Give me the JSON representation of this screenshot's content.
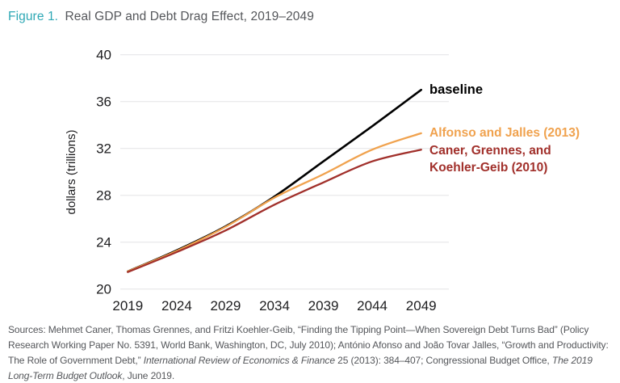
{
  "palette": {
    "teal": "#2ea8b5",
    "title_gray": "#54565a",
    "axis_text": "#1d1d1f",
    "gridline": "#e4e4e5",
    "source_gray": "#54565a",
    "baseline_black": "#000000",
    "alfonso_orange": "#f0a24e",
    "caner_red": "#a1302b"
  },
  "title": {
    "figure_label": "Figure 1.",
    "text": "Real GDP and Debt Drag Effect, 2019–2049"
  },
  "chart_data": {
    "type": "line",
    "title": "Real GDP and Debt Drag Effect, 2019–2049",
    "xlabel": "",
    "ylabel": "dollars (trillions)",
    "ylim": [
      20,
      40
    ],
    "yticks": [
      40,
      36,
      32,
      28,
      24,
      20
    ],
    "xticks": [
      2019,
      2024,
      2029,
      2034,
      2039,
      2044,
      2049
    ],
    "grid": "horizontal",
    "legend_position": "right-of-line-ends",
    "x": [
      2019,
      2024,
      2029,
      2034,
      2039,
      2044,
      2049
    ],
    "series": [
      {
        "name": "baseline",
        "label_lines": [
          "baseline"
        ],
        "color": "#000000",
        "values": [
          21.5,
          23.3,
          25.35,
          27.9,
          30.9,
          33.9,
          37.0
        ]
      },
      {
        "name": "alfonso-and-jalles-2013",
        "label_lines": [
          "Alfonso and Jalles (2013)"
        ],
        "color": "#f0a24e",
        "values": [
          21.5,
          23.25,
          25.3,
          27.8,
          29.8,
          31.9,
          33.3
        ]
      },
      {
        "name": "caner-grennes-koehler-geib-2010",
        "label_lines": [
          "Caner, Grennes, and",
          "Koehler-Geib (2010)"
        ],
        "color": "#a1302b",
        "values": [
          21.45,
          23.15,
          25.0,
          27.2,
          29.1,
          30.9,
          31.9
        ]
      }
    ]
  },
  "sources": {
    "segments": [
      {
        "text": "Sources: Mehmet Caner, Thomas Grennes, and Fritzi Koehler-Geib, “Finding the Tipping Point—When Sovereign Debt Turns Bad” (Policy Research Working Paper No. 5391, World Bank, Washington, DC, July 2010); António Afonso and João Tovar Jalles, “Growth and Productivity: The Role of Government Debt,” ",
        "italic": false
      },
      {
        "text": "International Review of Economics & Finance",
        "italic": true
      },
      {
        "text": " 25 (2013): 384–407; Congressional Budget Office, ",
        "italic": false
      },
      {
        "text": "The 2019 Long-Term Budget Outlook",
        "italic": true
      },
      {
        "text": ", June 2019.",
        "italic": false
      }
    ]
  }
}
